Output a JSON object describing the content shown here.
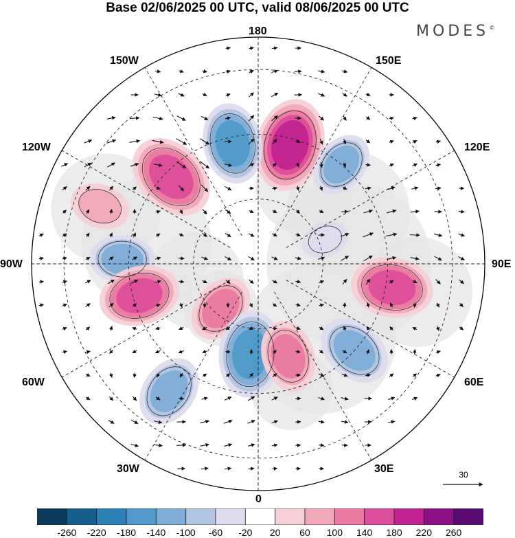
{
  "title": "Base 02/06/2025 00 UTC, valid 08/06/2025 00 UTC",
  "brand": "MODES",
  "brand_mark": "©",
  "longitude_labels": {
    "top": "180",
    "bottom": "0",
    "left": "90W",
    "right": "90E",
    "upper_left_outer": "150W",
    "upper_left_inner": "120W",
    "lower_left_inner": "60W",
    "lower_left_outer": "30W",
    "upper_right_outer": "150E",
    "upper_right_inner": "120E",
    "lower_right_inner": "60E",
    "lower_right_outer": "30E"
  },
  "vector_reference": "30",
  "colorbar": {
    "ticks": [
      "-260",
      "-220",
      "-180",
      "-140",
      "-100",
      "-60",
      "-20",
      "20",
      "60",
      "100",
      "140",
      "180",
      "220",
      "260"
    ],
    "colors": [
      "#0d3a5c",
      "#155f8f",
      "#2d7fb8",
      "#4f9bcb",
      "#7eaed6",
      "#b2c4e2",
      "#dcdcee",
      "#ffffff",
      "#f6cfd6",
      "#f0a8b8",
      "#ea7aa1",
      "#dd4f9a",
      "#c2228f",
      "#8d0f86",
      "#5a0a73"
    ]
  },
  "features": {
    "colors": {
      "negative_fill": "#5a97c9",
      "positive_fill": "#e0569d",
      "land_fill": "#e5e5e5",
      "arrow": "#111111"
    },
    "anomalies": [
      {
        "lon": 165,
        "lat": 52,
        "value": 190
      },
      {
        "lon": -168,
        "lat": 52,
        "value": -150
      },
      {
        "lon": 140,
        "lat": 50,
        "value": -100
      },
      {
        "lon": -135,
        "lat": 52,
        "value": 175
      },
      {
        "lon": -110,
        "lat": 38,
        "value": 80
      },
      {
        "lon": -92,
        "lat": 48,
        "value": -100
      },
      {
        "lon": -75,
        "lat": 52,
        "value": 150
      },
      {
        "lon": -40,
        "lat": 72,
        "value": 110
      },
      {
        "lon": -35,
        "lat": 42,
        "value": -120
      },
      {
        "lon": -5,
        "lat": 62,
        "value": -170
      },
      {
        "lon": 18,
        "lat": 60,
        "value": 120
      },
      {
        "lon": 48,
        "lat": 50,
        "value": -130
      },
      {
        "lon": 80,
        "lat": 48,
        "value": 155
      },
      {
        "lon": 110,
        "lat": 68,
        "value": -40
      }
    ]
  }
}
